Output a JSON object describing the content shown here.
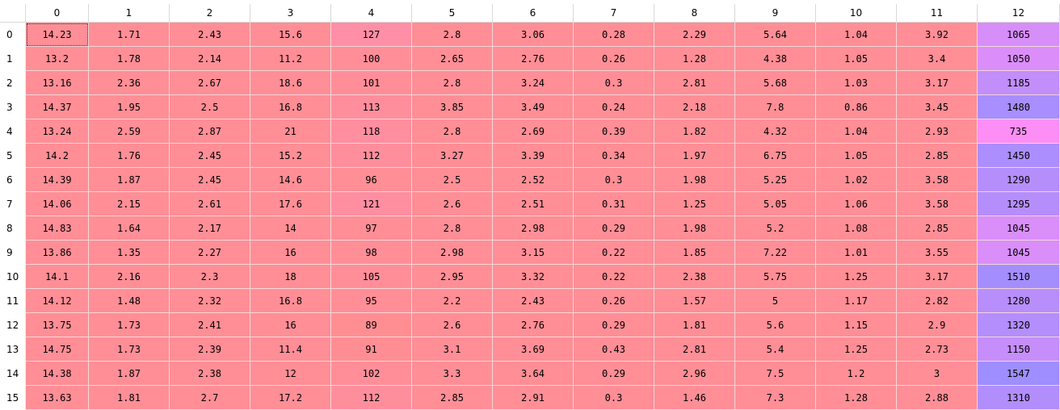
{
  "table": {
    "columns": [
      "0",
      "1",
      "2",
      "3",
      "4",
      "5",
      "6",
      "7",
      "8",
      "9",
      "10",
      "11",
      "12"
    ],
    "row_labels": [
      "0",
      "1",
      "2",
      "3",
      "4",
      "5",
      "6",
      "7",
      "8",
      "9",
      "10",
      "11",
      "12",
      "13",
      "14",
      "15"
    ],
    "rows": [
      [
        "14.23",
        "1.71",
        "2.43",
        "15.6",
        "127",
        "2.8",
        "3.06",
        "0.28",
        "2.29",
        "5.64",
        "1.04",
        "3.92",
        "1065"
      ],
      [
        "13.2",
        "1.78",
        "2.14",
        "11.2",
        "100",
        "2.65",
        "2.76",
        "0.26",
        "1.28",
        "4.38",
        "1.05",
        "3.4",
        "1050"
      ],
      [
        "13.16",
        "2.36",
        "2.67",
        "18.6",
        "101",
        "2.8",
        "3.24",
        "0.3",
        "2.81",
        "5.68",
        "1.03",
        "3.17",
        "1185"
      ],
      [
        "14.37",
        "1.95",
        "2.5",
        "16.8",
        "113",
        "3.85",
        "3.49",
        "0.24",
        "2.18",
        "7.8",
        "0.86",
        "3.45",
        "1480"
      ],
      [
        "13.24",
        "2.59",
        "2.87",
        "21",
        "118",
        "2.8",
        "2.69",
        "0.39",
        "1.82",
        "4.32",
        "1.04",
        "2.93",
        "735"
      ],
      [
        "14.2",
        "1.76",
        "2.45",
        "15.2",
        "112",
        "3.27",
        "3.39",
        "0.34",
        "1.97",
        "6.75",
        "1.05",
        "2.85",
        "1450"
      ],
      [
        "14.39",
        "1.87",
        "2.45",
        "14.6",
        "96",
        "2.5",
        "2.52",
        "0.3",
        "1.98",
        "5.25",
        "1.02",
        "3.58",
        "1290"
      ],
      [
        "14.06",
        "2.15",
        "2.61",
        "17.6",
        "121",
        "2.6",
        "2.51",
        "0.31",
        "1.25",
        "5.05",
        "1.06",
        "3.58",
        "1295"
      ],
      [
        "14.83",
        "1.64",
        "2.17",
        "14",
        "97",
        "2.8",
        "2.98",
        "0.29",
        "1.98",
        "5.2",
        "1.08",
        "2.85",
        "1045"
      ],
      [
        "13.86",
        "1.35",
        "2.27",
        "16",
        "98",
        "2.98",
        "3.15",
        "0.22",
        "1.85",
        "7.22",
        "1.01",
        "3.55",
        "1045"
      ],
      [
        "14.1",
        "2.16",
        "2.3",
        "18",
        "105",
        "2.95",
        "3.32",
        "0.22",
        "2.38",
        "5.75",
        "1.25",
        "3.17",
        "1510"
      ],
      [
        "14.12",
        "1.48",
        "2.32",
        "16.8",
        "95",
        "2.2",
        "2.43",
        "0.26",
        "1.57",
        "5",
        "1.17",
        "2.82",
        "1280"
      ],
      [
        "13.75",
        "1.73",
        "2.41",
        "16",
        "89",
        "2.6",
        "2.76",
        "0.29",
        "1.81",
        "5.6",
        "1.15",
        "2.9",
        "1320"
      ],
      [
        "14.75",
        "1.73",
        "2.39",
        "11.4",
        "91",
        "3.1",
        "3.69",
        "0.43",
        "2.81",
        "5.4",
        "1.25",
        "2.73",
        "1150"
      ],
      [
        "14.38",
        "1.87",
        "2.38",
        "12",
        "102",
        "3.3",
        "3.64",
        "0.29",
        "2.96",
        "7.5",
        "1.2",
        "3",
        "1547"
      ],
      [
        "13.63",
        "1.81",
        "2.7",
        "17.2",
        "112",
        "2.85",
        "2.91",
        "0.3",
        "1.46",
        "7.3",
        "1.28",
        "2.88",
        "1310"
      ]
    ],
    "selected_cell": {
      "row": 0,
      "col": 0
    },
    "colors": {
      "base": "#ff8e96",
      "col4_base": "#ff8ea0",
      "col12_low": "#ff8ef4",
      "col12_high": "#9e8eff"
    },
    "col4_shades": [
      "#ff8fa6",
      "#ff8e98",
      "#ff8e98",
      "#ff8e9d",
      "#ff8e9f",
      "#ff8e9c",
      "#ff8e96",
      "#ff8ea1",
      "#ff8e96",
      "#ff8e97",
      "#ff8e99",
      "#ff8e96",
      "#ff8e93",
      "#ff8e94",
      "#ff8e99",
      "#ff8e9c"
    ],
    "col12_shades": [
      "#d68ef9",
      "#db8ef9",
      "#c18efa",
      "#a88efe",
      "#fc8ef5",
      "#ac8efe",
      "#b68efc",
      "#b58efc",
      "#d98ef9",
      "#d98ef9",
      "#a48efe",
      "#b88efc",
      "#b38efc",
      "#c58efa",
      "#9e8eff",
      "#b18efc"
    ]
  }
}
